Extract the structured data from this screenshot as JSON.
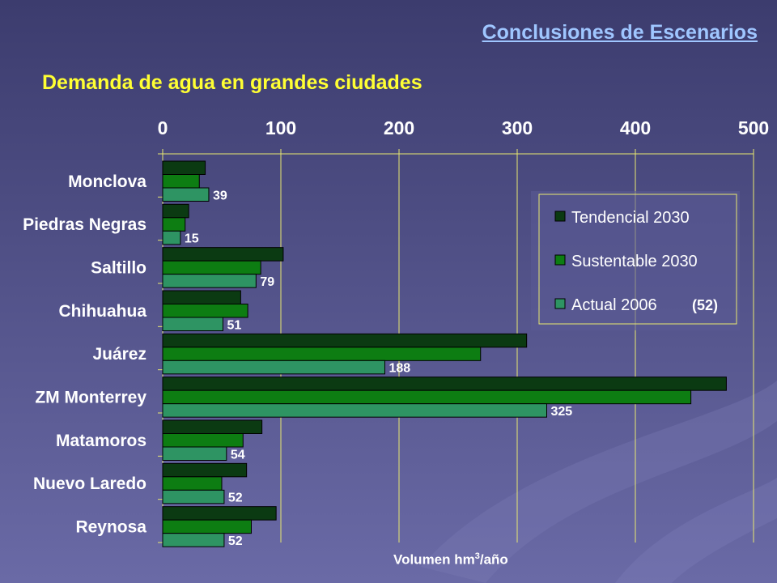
{
  "header": {
    "link_text": "Conclusiones de Escenarios"
  },
  "colors": {
    "background_top": "#3c3c6e",
    "background_bottom": "#6a6aa6",
    "title": "#ffff33",
    "link": "#9fc6ff",
    "tendencial": "#0b3a12",
    "sustentable": "#0d7d12",
    "actual": "#2e9463",
    "gridline": "#e8e870"
  },
  "chart_data": {
    "type": "bar",
    "orientation": "horizontal",
    "title": "Demanda de agua en grandes ciudades",
    "xlabel_main": "Volumen hm",
    "xlabel_sup": "3",
    "xlabel_tail": "/año",
    "xlim": [
      0,
      500
    ],
    "xticks": [
      "0",
      "100",
      "200",
      "300",
      "400",
      "500"
    ],
    "x_axis_position": "top",
    "grid": true,
    "legend_position": "right",
    "categories": [
      "Monclova",
      "Piedras Negras",
      "Saltillo",
      "Chihuahua",
      "Juárez",
      "ZM Monterrey",
      "Matamoros",
      "Nuevo Laredo",
      "Reynosa"
    ],
    "series": [
      {
        "name": "Tendencial 2030",
        "values": [
          36,
          22,
          102,
          66,
          308,
          477,
          84,
          71,
          96
        ]
      },
      {
        "name": "Sustentable 2030",
        "values": [
          31,
          19,
          83,
          72,
          269,
          447,
          68,
          50,
          75
        ]
      },
      {
        "name": "Actual 2006",
        "values": [
          39,
          15,
          79,
          51,
          188,
          325,
          54,
          52,
          52
        ]
      }
    ],
    "data_labels": [
      "39",
      "15",
      "79",
      "51",
      "188",
      "325",
      "54",
      "52",
      "52"
    ],
    "legend_note": "(52)"
  }
}
